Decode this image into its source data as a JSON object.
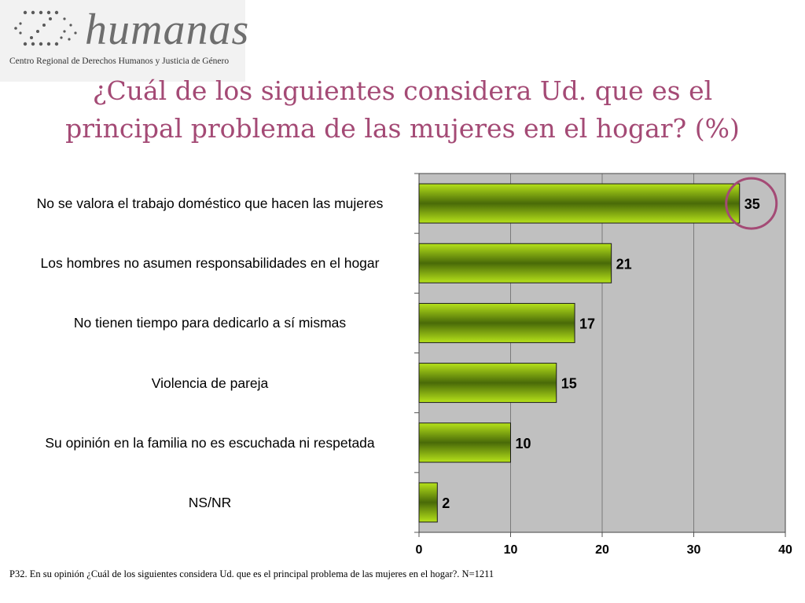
{
  "logo": {
    "name": "humanas",
    "subtitle": "Centro Regional de Derechos Humanos y Justicia de Género"
  },
  "title": {
    "line1": "¿Cuál de los siguientes considera Ud. que es el",
    "line2": "principal problema de las mujeres en el hogar? (%)"
  },
  "chart_data": {
    "type": "bar",
    "orientation": "horizontal",
    "title": "¿Cuál de los siguientes considera Ud. que es el principal problema de las mujeres en el hogar? (%)",
    "categories": [
      "No se valora el trabajo doméstico que hacen las mujeres",
      "Los hombres no asumen responsabilidades en el hogar",
      "No tienen tiempo para dedicarlo a sí mismas",
      "Violencia de pareja",
      "Su opinión en la familia no es escuchada ni respetada",
      "NS/NR"
    ],
    "values": [
      35,
      21,
      17,
      15,
      10,
      2
    ],
    "data_labels": [
      "35",
      "21",
      "17",
      "15",
      "10",
      "2"
    ],
    "xlim": [
      0,
      40
    ],
    "xticks": [
      "0",
      "10",
      "20",
      "30",
      "40"
    ],
    "grid": true,
    "legend": "none",
    "highlighted_category_index": 0,
    "colors": {
      "bar_light": "#b6e21a",
      "bar_dark": "#496a08",
      "plot_background": "#c0c0c0",
      "highlight_circle": "#a44a75"
    }
  },
  "footnote": "P32. En su opinión ¿Cuál de los siguientes considera Ud. que es el principal problema de las mujeres en el hogar?. N=1211"
}
